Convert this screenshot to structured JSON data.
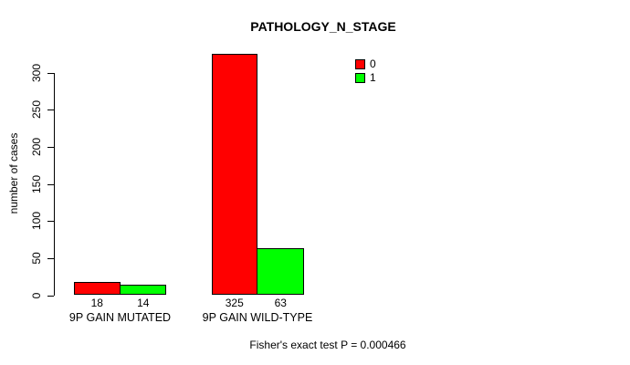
{
  "chart_data": {
    "type": "bar",
    "title": "PATHOLOGY_N_STAGE",
    "ylabel": "number of cases",
    "xlabel": "",
    "categories": [
      "9P GAIN MUTATED",
      "9P GAIN WILD-TYPE"
    ],
    "series": [
      {
        "name": "0",
        "color": "#ff0000",
        "values": [
          18,
          325
        ]
      },
      {
        "name": "1",
        "color": "#00ff00",
        "values": [
          14,
          63
        ]
      }
    ],
    "yticks": [
      0,
      50,
      100,
      150,
      200,
      250,
      300
    ],
    "ylim": [
      0,
      325
    ],
    "grid": false,
    "bar_border_color": "#000000",
    "legend_position": "top-right",
    "footnote": "Fisher's exact test P = 0.000466"
  }
}
